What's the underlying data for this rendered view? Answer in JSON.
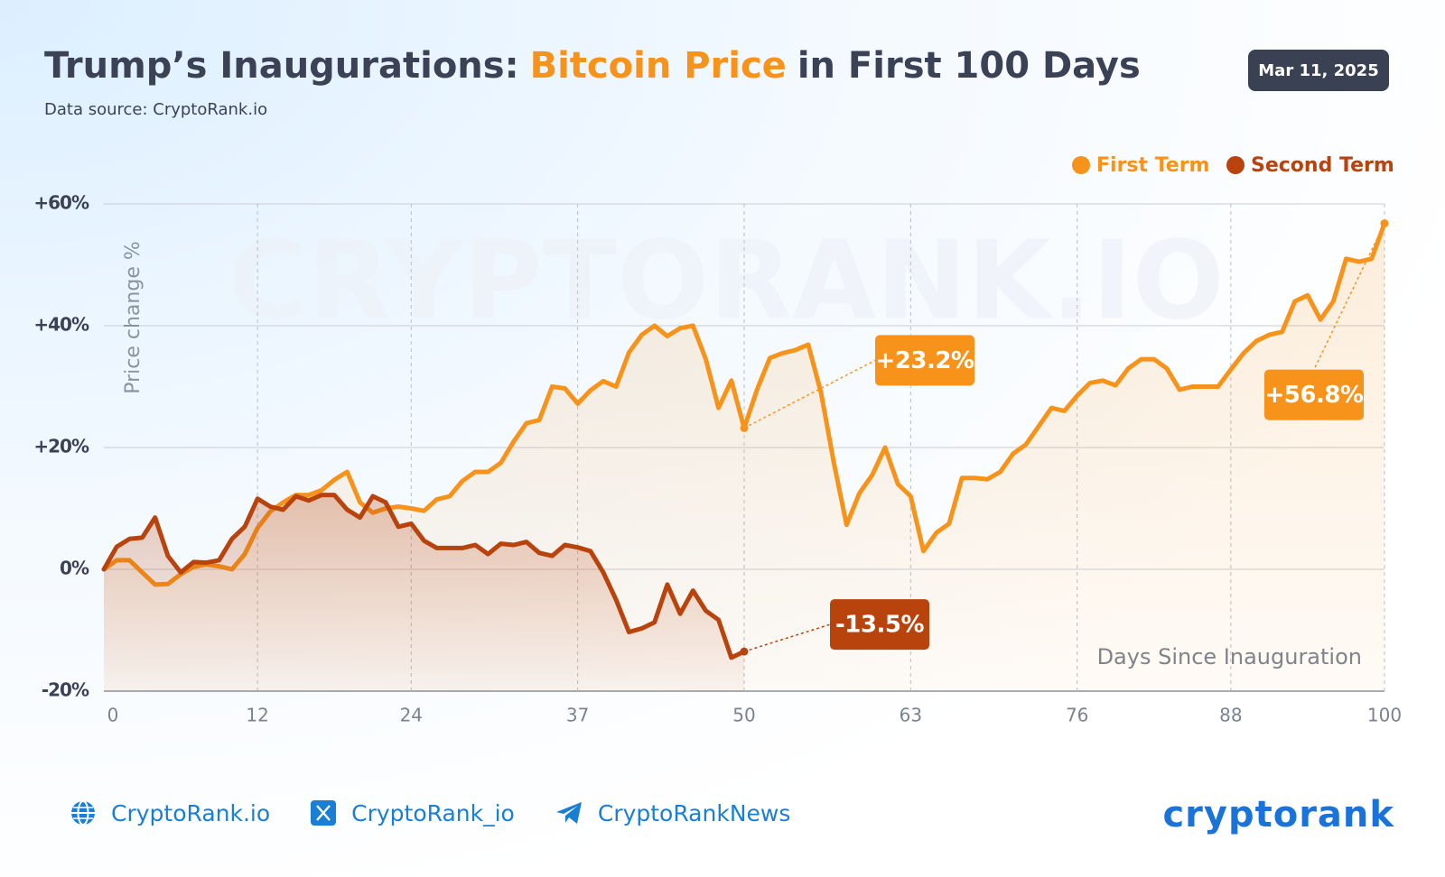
{
  "header": {
    "title_segments": [
      "Trump’s Inaugurations:",
      "Bitcoin Price",
      "in First 100 Days"
    ],
    "subtitle": "Data source: CryptoRank.io",
    "date": "Mar 11, 2025"
  },
  "chart_data": {
    "type": "line",
    "watermark": "CRYPTORANK.IO",
    "ylabel": "Price change %",
    "xlabel": "Days Since Inauguration",
    "xlim": [
      0,
      100
    ],
    "xticks": [
      0,
      12,
      24,
      37,
      50,
      63,
      76,
      88,
      100
    ],
    "ylim": [
      -20,
      60
    ],
    "yticks": [
      {
        "value": -20,
        "label": "-20%"
      },
      {
        "value": 0,
        "label": "0%"
      },
      {
        "value": 20,
        "label": "+20%"
      },
      {
        "value": 40,
        "label": "+40%"
      },
      {
        "value": 60,
        "label": "+60%"
      }
    ],
    "grid": true,
    "x": [
      0,
      1,
      2,
      3,
      4,
      5,
      6,
      7,
      8,
      9,
      10,
      11,
      12,
      13,
      14,
      15,
      16,
      17,
      18,
      19,
      20,
      21,
      22,
      23,
      24,
      25,
      26,
      27,
      28,
      29,
      30,
      31,
      32,
      33,
      34,
      35,
      36,
      37,
      38,
      39,
      40,
      41,
      42,
      43,
      44,
      45,
      46,
      47,
      48,
      49,
      50,
      51,
      52,
      53,
      54,
      55,
      56,
      57,
      58,
      59,
      60,
      61,
      62,
      63,
      64,
      65,
      66,
      67,
      68,
      69,
      70,
      71,
      72,
      73,
      74,
      75,
      76,
      77,
      78,
      79,
      80,
      81,
      82,
      83,
      84,
      85,
      86,
      87,
      88,
      89,
      90,
      91,
      92,
      93,
      94,
      95,
      96,
      97,
      98,
      99,
      100
    ],
    "series": [
      {
        "name": "First Term",
        "color": "#f7931a",
        "values": [
          0,
          1.5,
          1.5,
          -0.5,
          -2.5,
          -2.4,
          -0.8,
          0.4,
          0.8,
          0.5,
          0,
          2.5,
          6.8,
          9.5,
          11,
          12.2,
          12.2,
          13,
          14.7,
          16,
          11,
          9.3,
          10,
          10.3,
          10,
          9.6,
          11.5,
          12,
          14.5,
          16,
          16,
          17.5,
          21,
          24,
          24.5,
          30,
          29.7,
          27.2,
          29.4,
          30.9,
          30,
          35.6,
          38.5,
          40,
          38.3,
          39.6,
          40,
          34.5,
          26.5,
          31,
          23.2,
          29.5,
          34.7,
          35.5,
          36,
          36.9,
          29,
          17.5,
          7.3,
          12.5,
          15.5,
          20,
          14,
          12,
          3,
          6,
          7.5,
          15,
          15,
          14.8,
          16,
          19,
          20.5,
          23.5,
          26.5,
          26,
          28.5,
          30.6,
          31,
          30.2,
          33,
          34.5,
          34.5,
          33,
          29.5,
          30,
          30,
          30,
          32.8,
          35.5,
          37.5,
          38.5,
          39,
          44,
          45,
          41,
          44,
          51,
          50.5,
          51,
          56.8
        ]
      },
      {
        "name": "Second Term",
        "color": "#b8430d",
        "values": [
          0,
          3.7,
          5,
          5.2,
          8.5,
          2.2,
          -0.5,
          1.2,
          1.1,
          1.5,
          5,
          7,
          11.6,
          10.3,
          9.8,
          12,
          11.3,
          12.2,
          12.2,
          9.8,
          8.5,
          12,
          11,
          7,
          7.5,
          4.7,
          3.5,
          3.5,
          3.5,
          4,
          2.5,
          4.2,
          4,
          4.5,
          2.7,
          2.2,
          4,
          3.6,
          3,
          -0.5,
          -5,
          -10.3,
          -9.7,
          -8.7,
          -2.5,
          -7.3,
          -3.5,
          -6.8,
          -8.3,
          -14.5,
          -13.5,
          null,
          null,
          null,
          null,
          null,
          null,
          null,
          null,
          null,
          null,
          null,
          null,
          null,
          null,
          null,
          null,
          null,
          null,
          null,
          null,
          null,
          null,
          null,
          null,
          null,
          null,
          null,
          null,
          null,
          null,
          null,
          null,
          null,
          null,
          null,
          null,
          null,
          null,
          null,
          null,
          null,
          null,
          null,
          null,
          null,
          null,
          null,
          null,
          null,
          null
        ]
      }
    ],
    "annotations": [
      {
        "x": 50,
        "y": 23.2,
        "text": "+23.2%",
        "color": "#f7931a"
      },
      {
        "x": 50,
        "y": -13.5,
        "text": "-13.5%",
        "color": "#b8430d"
      },
      {
        "x": 100,
        "y": 56.8,
        "text": "+56.8%",
        "color": "#f7931a"
      }
    ]
  },
  "footer": {
    "links": [
      "CryptoRank.io",
      "CryptoRank_io",
      "CryptoRankNews"
    ],
    "logo": "cryptorank"
  }
}
